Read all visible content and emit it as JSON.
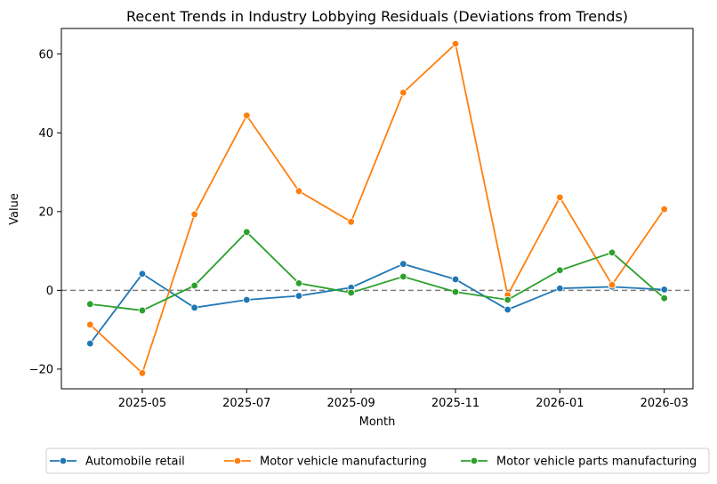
{
  "chart_data": {
    "type": "line",
    "title": "Recent Trends in Industry Lobbying Residuals (Deviations from Trends)",
    "xlabel": "Month",
    "ylabel": "Value",
    "x": [
      "2025-04",
      "2025-05",
      "2025-06",
      "2025-07",
      "2025-08",
      "2025-09",
      "2025-10",
      "2025-11",
      "2025-12",
      "2026-01",
      "2026-02",
      "2026-03"
    ],
    "x_ticks": [
      "2025-05",
      "2025-07",
      "2025-09",
      "2025-11",
      "2026-01",
      "2026-03"
    ],
    "y_ticks": [
      -20,
      0,
      20,
      40,
      60
    ],
    "ylim": [
      -25,
      66.5
    ],
    "reference_line": 0,
    "grid": false,
    "legend_position": "bottom",
    "series": [
      {
        "name": "Automobile retail",
        "color": "#1f77b4",
        "values": [
          -13.5,
          4.2,
          -4.4,
          -2.4,
          -1.4,
          0.7,
          6.7,
          2.8,
          -4.9,
          0.5,
          0.9,
          0.2
        ]
      },
      {
        "name": "Motor vehicle manufacturing",
        "color": "#ff7f0e",
        "values": [
          -8.7,
          -21.0,
          19.3,
          44.4,
          25.2,
          17.4,
          50.2,
          62.6,
          -1.2,
          23.6,
          1.4,
          20.6
        ]
      },
      {
        "name": "Motor vehicle parts manufacturing",
        "color": "#2ca02c",
        "values": [
          -3.5,
          -5.1,
          1.2,
          14.8,
          1.8,
          -0.6,
          3.5,
          -0.4,
          -2.4,
          5.1,
          9.6,
          -2.0
        ]
      }
    ]
  }
}
